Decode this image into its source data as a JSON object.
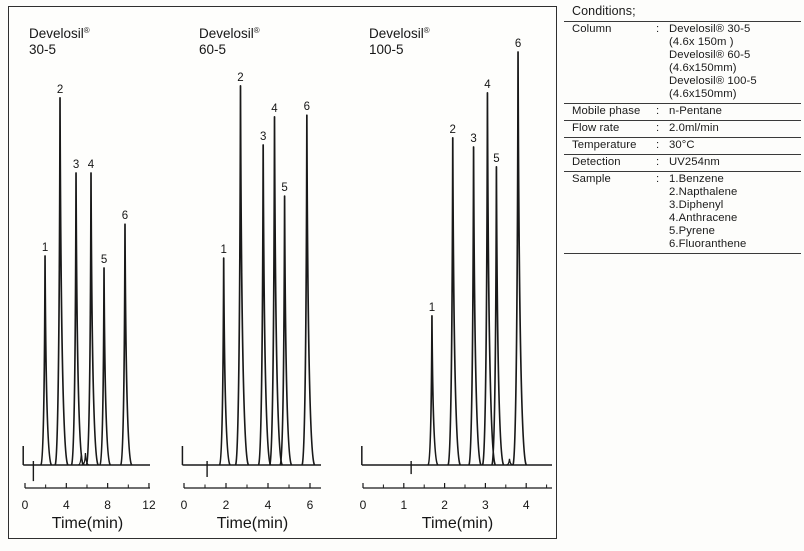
{
  "figure": {
    "line_color": "#191919",
    "border_color": "#2f2f2f",
    "background": "#fefefc"
  },
  "chart_data": [
    {
      "type": "line",
      "title": "Develosil®",
      "subtitle": "30-5",
      "xlabel": "Time(min)",
      "xlim": [
        0,
        12.1
      ],
      "xticks": [
        0,
        4,
        8,
        12
      ],
      "xminorticks": [
        2,
        6,
        10
      ],
      "grid": false,
      "peaks": [
        {
          "label": "1",
          "time_min": 1.94,
          "rel_height": 0.506
        },
        {
          "label": "2",
          "time_min": 3.39,
          "rel_height": 0.889
        },
        {
          "label": "3",
          "time_min": 4.94,
          "rel_height": 0.707
        },
        {
          "label": "4",
          "time_min": 6.39,
          "rel_height": 0.707
        },
        {
          "label": "5",
          "time_min": 7.65,
          "rel_height": 0.477
        },
        {
          "label": "6",
          "time_min": 9.68,
          "rel_height": 0.583
        }
      ],
      "artifacts": {
        "start_mark_time": 0.02,
        "start_mark_rel_height": 0.046,
        "injection_mark_time": 0.81,
        "injection_mark_rel_depth": 0.039
      },
      "baseline_bumps": [
        {
          "time_min": 5.45,
          "rel_height": 0.029
        },
        {
          "time_min": 5.85,
          "rel_height": 0.029
        }
      ]
    },
    {
      "type": "line",
      "title": "Develosil®",
      "subtitle": "60-5",
      "xlabel": "Time(min)",
      "xlim": [
        0,
        6.5
      ],
      "xticks": [
        0,
        2,
        4,
        6
      ],
      "xminorticks": [
        1,
        3,
        5
      ],
      "grid": false,
      "peaks": [
        {
          "label": "1",
          "time_min": 1.89,
          "rel_height": 0.501
        },
        {
          "label": "2",
          "time_min": 2.69,
          "rel_height": 0.918
        },
        {
          "label": "3",
          "time_min": 3.77,
          "rel_height": 0.775
        },
        {
          "label": "4",
          "time_min": 4.31,
          "rel_height": 0.843
        },
        {
          "label": "5",
          "time_min": 4.79,
          "rel_height": 0.651
        },
        {
          "label": "6",
          "time_min": 5.85,
          "rel_height": 0.847
        }
      ],
      "artifacts": {
        "start_mark_time": 0.02,
        "start_mark_rel_height": 0.046,
        "injection_mark_time": 1.1,
        "injection_mark_rel_depth": 0.029
      },
      "baseline_bumps": []
    },
    {
      "type": "line",
      "title": "Develosil®",
      "subtitle": "100-5",
      "xlabel": "Time(min)",
      "xlim": [
        0,
        4.7
      ],
      "xticks": [
        0,
        1,
        2,
        3,
        4
      ],
      "xminorticks": [
        0.5,
        1.5,
        2.5,
        3.5,
        4.5
      ],
      "grid": false,
      "peaks": [
        {
          "label": "1",
          "time_min": 1.69,
          "rel_height": 0.361
        },
        {
          "label": "2",
          "time_min": 2.2,
          "rel_height": 0.792
        },
        {
          "label": "3",
          "time_min": 2.71,
          "rel_height": 0.77
        },
        {
          "label": "4",
          "time_min": 3.05,
          "rel_height": 0.901
        },
        {
          "label": "5",
          "time_min": 3.27,
          "rel_height": 0.722
        },
        {
          "label": "6",
          "time_min": 3.8,
          "rel_height": 1.0
        }
      ],
      "artifacts": {
        "start_mark_time": 0.02,
        "start_mark_rel_height": 0.046,
        "injection_mark_time": 1.18,
        "injection_mark_rel_depth": 0.022
      },
      "baseline_bumps": [
        {
          "time_min": 3.59,
          "rel_height": 0.015
        }
      ]
    }
  ],
  "conditions": {
    "title": "Conditions;",
    "rows": [
      {
        "label": "Column",
        "values": [
          "Develosil® 30-5",
          "(4.6x 150m )",
          "Develosil® 60-5",
          "(4.6x150mm)",
          "Develosil® 100-5",
          "(4.6x150mm)"
        ]
      },
      {
        "label": "Mobile phase",
        "values": [
          "n-Pentane"
        ]
      },
      {
        "label": "Flow rate",
        "values": [
          "2.0ml/min"
        ]
      },
      {
        "label": "Temperature",
        "values": [
          "30°C"
        ]
      },
      {
        "label": "Detection",
        "values": [
          "UV254nm"
        ]
      },
      {
        "label": "Sample",
        "values": [
          "1.Benzene",
          "2.Napthalene",
          "3.Diphenyl",
          "4.Anthracene",
          "5.Pyrene",
          "6.Fluoranthene"
        ]
      }
    ]
  }
}
